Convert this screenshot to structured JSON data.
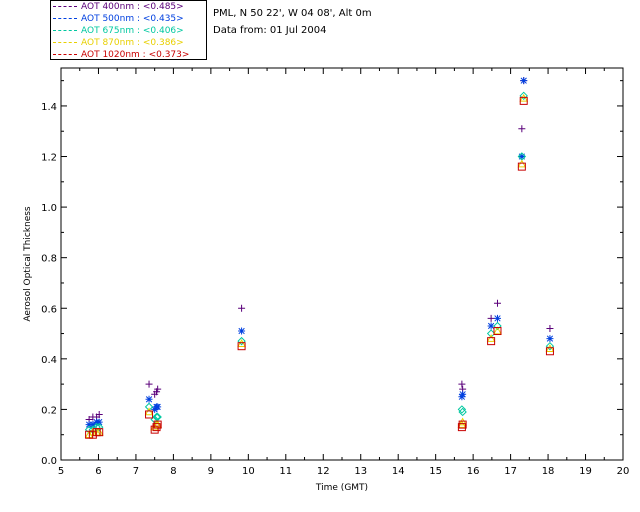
{
  "header": {
    "location": "PML, N 50 22', W 04 08', Alt 0m",
    "date": "Data from: 01 Jul 2004"
  },
  "legend": [
    {
      "label": "AOT  400nm : <0.485>",
      "color": "#5a007a"
    },
    {
      "label": "AOT  500nm : <0.435>",
      "color": "#0040e0"
    },
    {
      "label": "AOT  675nm : <0.406>",
      "color": "#00c8a0"
    },
    {
      "label": "AOT  870nm : <0.386>",
      "color": "#e8d000"
    },
    {
      "label": "AOT 1020nm : <0.373>",
      "color": "#c80000"
    }
  ],
  "chart_data": {
    "type": "scatter",
    "xlabel": "Time (GMT)",
    "ylabel": "Aerosol Optical Thickness",
    "xlim": [
      5,
      20
    ],
    "ylim": [
      0.0,
      1.55
    ],
    "x_ticks": [
      5,
      6,
      7,
      8,
      9,
      10,
      11,
      12,
      13,
      14,
      15,
      16,
      17,
      18,
      19,
      20
    ],
    "y_ticks": [
      0.0,
      0.2,
      0.4,
      0.6,
      0.8,
      1.0,
      1.2,
      1.4
    ],
    "y_tick_labels": [
      "0.0",
      "0.2",
      "0.4",
      "0.6",
      "0.8",
      "1.0",
      "1.2",
      "1.4"
    ],
    "series": [
      {
        "name": "AOT  400nm",
        "color": "#5a007a",
        "marker": "plus",
        "x": [
          5.75,
          5.85,
          5.95,
          6.02,
          7.35,
          7.5,
          7.55,
          7.58,
          9.82,
          15.7,
          15.72,
          16.48,
          16.65,
          17.3,
          17.35,
          18.05
        ],
        "y": [
          0.16,
          0.17,
          0.17,
          0.18,
          0.3,
          0.26,
          0.27,
          0.28,
          0.6,
          0.3,
          0.28,
          0.56,
          0.62,
          1.31,
          1.5,
          0.52
        ]
      },
      {
        "name": "AOT  500nm",
        "color": "#0040e0",
        "marker": "star",
        "x": [
          5.75,
          5.85,
          5.95,
          6.02,
          7.35,
          7.5,
          7.55,
          7.58,
          9.82,
          15.7,
          15.72,
          16.48,
          16.65,
          17.3,
          17.35,
          18.05
        ],
        "y": [
          0.14,
          0.14,
          0.15,
          0.15,
          0.24,
          0.2,
          0.21,
          0.21,
          0.51,
          0.25,
          0.26,
          0.53,
          0.56,
          1.2,
          1.5,
          0.48
        ]
      },
      {
        "name": "AOT  675nm",
        "color": "#00c8a0",
        "marker": "diamond",
        "x": [
          5.75,
          5.85,
          5.95,
          6.02,
          7.35,
          7.5,
          7.55,
          7.58,
          9.82,
          15.7,
          15.72,
          16.48,
          16.65,
          17.3,
          17.35,
          18.05
        ],
        "y": [
          0.12,
          0.12,
          0.13,
          0.13,
          0.21,
          0.16,
          0.17,
          0.17,
          0.47,
          0.2,
          0.19,
          0.5,
          0.53,
          1.2,
          1.44,
          0.45
        ]
      },
      {
        "name": "AOT  870nm",
        "color": "#e8d000",
        "marker": "triangle",
        "x": [
          5.75,
          5.85,
          5.95,
          6.02,
          7.35,
          7.5,
          7.55,
          7.58,
          9.82,
          15.7,
          15.72,
          16.48,
          16.65,
          17.3,
          17.35,
          18.05
        ],
        "y": [
          0.1,
          0.11,
          0.11,
          0.11,
          0.19,
          0.13,
          0.14,
          0.14,
          0.46,
          0.14,
          0.15,
          0.48,
          0.51,
          1.17,
          1.43,
          0.44
        ]
      },
      {
        "name": "AOT 1020nm",
        "color": "#c80000",
        "marker": "square",
        "x": [
          5.75,
          5.85,
          5.95,
          6.02,
          7.35,
          7.5,
          7.55,
          7.58,
          9.82,
          15.7,
          15.72,
          16.48,
          16.65,
          17.3,
          17.35,
          18.05
        ],
        "y": [
          0.1,
          0.1,
          0.11,
          0.11,
          0.18,
          0.12,
          0.13,
          0.14,
          0.45,
          0.13,
          0.14,
          0.47,
          0.51,
          1.16,
          1.42,
          0.43
        ]
      }
    ]
  }
}
